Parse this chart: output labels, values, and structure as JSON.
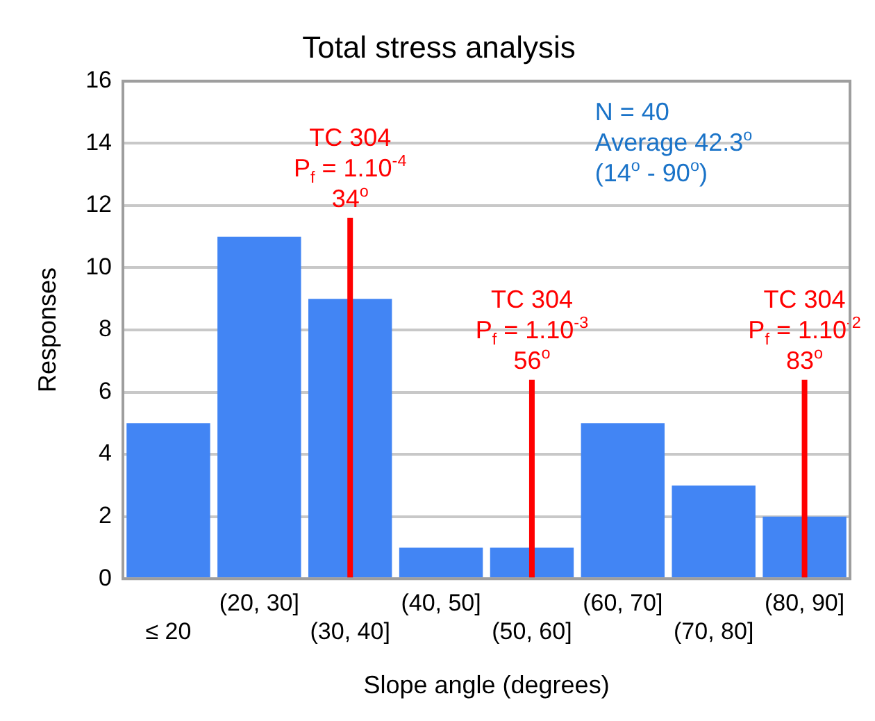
{
  "chart_data": {
    "type": "bar",
    "title": "Total stress analysis",
    "xlabel": "Slope angle (degrees)",
    "ylabel": "Responses",
    "categories": [
      "≤ 20",
      "(20, 30]",
      "(30, 40]",
      "(40, 50]",
      "(50, 60]",
      "(60, 70]",
      "(70, 80]",
      "(80, 90]"
    ],
    "values": [
      5,
      11,
      9,
      1,
      1,
      5,
      3,
      2
    ],
    "color": "#4285f4",
    "ylim": [
      0,
      16
    ],
    "yticks": [
      0,
      2,
      4,
      6,
      8,
      10,
      12,
      14,
      16
    ],
    "grid": "y",
    "legend": false,
    "ref_lines": [
      {
        "axis": "x",
        "value": "(30, 40]",
        "label": "TC 304\nP$_{f}$ = 1.10$^{-4}$\n34$^{o}$",
        "color": "#ff0000"
      },
      {
        "axis": "x",
        "value": "(50, 60]",
        "label": "TC 304\nP$_{f}$ = 1.10$^{-3}$\n56$^{o}$",
        "color": "#ff0000"
      },
      {
        "axis": "x",
        "value": "(80, 90]",
        "label": "TC 304\nP$_{f}$ = 1.10$^{-2}$\n83$^{o}$",
        "color": "#ff0000"
      }
    ],
    "annotations": [
      "N = 40\nAverage 42.3$^{o}$\n(14$^{o}$ - 90$^{o}$)"
    ]
  }
}
